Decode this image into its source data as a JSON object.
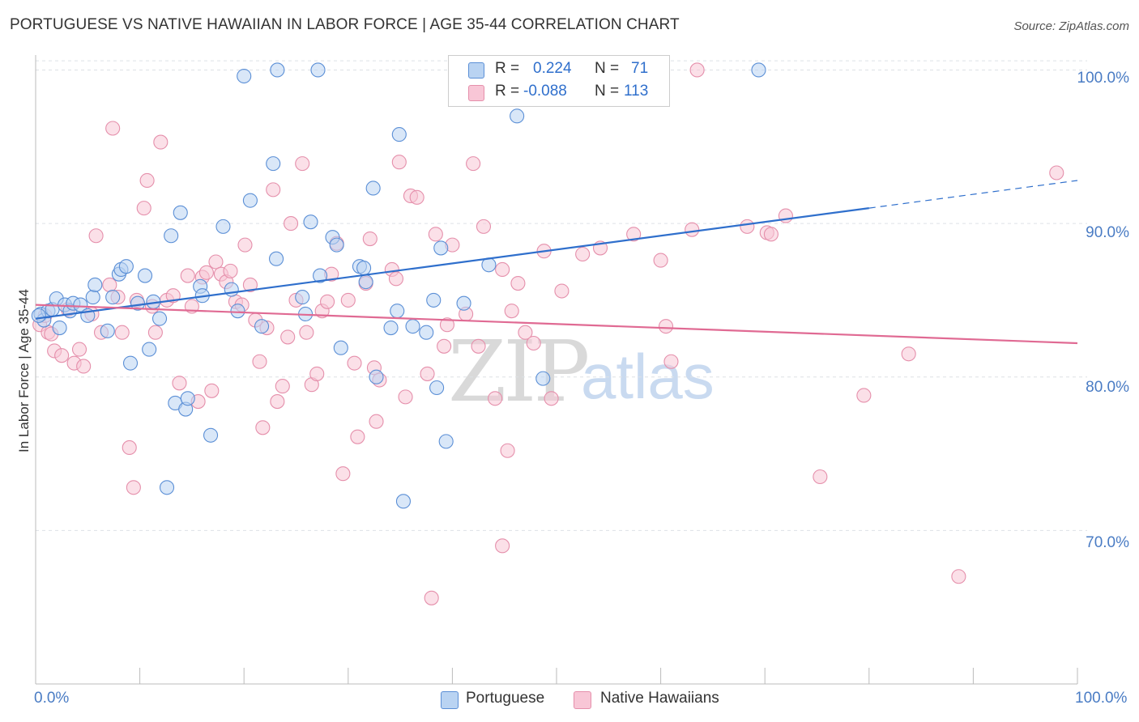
{
  "title": "PORTUGUESE VS NATIVE HAWAIIAN IN LABOR FORCE | AGE 35-44 CORRELATION CHART",
  "source": "Source: ZipAtlas.com",
  "watermark": {
    "zip": "ZIP",
    "atlas": "atlas"
  },
  "legend": {
    "r_label": "R =",
    "n_label": "N =",
    "rows": [
      {
        "name": "Portuguese",
        "r": "0.224",
        "n": "71"
      },
      {
        "name": "Native Hawaiians",
        "r": "-0.088",
        "n": "113"
      }
    ]
  },
  "colors": {
    "portuguese_fill": "#b9d3f2",
    "portuguese_stroke": "#5b8fd6",
    "portuguese_line": "#2f6fcc",
    "hawaiian_fill": "#f8c6d6",
    "hawaiian_stroke": "#e58fab",
    "hawaiian_line": "#e06a93",
    "grid": "#dde1e6",
    "axis_text": "#4a7cc4"
  },
  "chart_data": {
    "type": "scatter",
    "title": "PORTUGUESE VS NATIVE HAWAIIAN IN LABOR FORCE | AGE 35-44 CORRELATION CHART",
    "xlabel": "",
    "ylabel": "In Labor Force | Age 35-44",
    "xlim": [
      0,
      100
    ],
    "ylim": [
      60,
      101.5
    ],
    "x_tick_labels": [
      "0.0%",
      "100.0%"
    ],
    "y_ticks": [
      70,
      80,
      90,
      100
    ],
    "y_tick_labels": [
      "70.0%",
      "80.0%",
      "90.0%",
      "100.0%"
    ],
    "grid": true,
    "legend_position": "top-center",
    "series": [
      {
        "name": "Portuguese",
        "r": 0.224,
        "n": 71,
        "trend": {
          "x0": 0,
          "y0": 83.8,
          "x1": 80,
          "y1": 91.0,
          "dashed_to_x": 100,
          "dashed_to_y": 92.8
        },
        "points": [
          [
            0.5,
            84.1
          ],
          [
            0.8,
            83.7
          ],
          [
            1.2,
            84.3
          ],
          [
            1.6,
            84.4
          ],
          [
            2.0,
            85.1
          ],
          [
            2.3,
            83.2
          ],
          [
            2.8,
            84.7
          ],
          [
            3.3,
            84.3
          ],
          [
            3.6,
            84.8
          ],
          [
            4.3,
            84.7
          ],
          [
            5.0,
            84.0
          ],
          [
            5.5,
            85.2
          ],
          [
            5.7,
            86.0
          ],
          [
            6.9,
            83.0
          ],
          [
            7.4,
            85.2
          ],
          [
            8.0,
            86.7
          ],
          [
            8.2,
            87.0
          ],
          [
            8.7,
            87.2
          ],
          [
            9.1,
            80.9
          ],
          [
            9.8,
            84.8
          ],
          [
            10.5,
            86.6
          ],
          [
            10.9,
            81.8
          ],
          [
            11.3,
            84.9
          ],
          [
            11.9,
            83.8
          ],
          [
            12.6,
            72.8
          ],
          [
            13.0,
            89.2
          ],
          [
            13.4,
            78.3
          ],
          [
            13.9,
            90.7
          ],
          [
            14.4,
            77.9
          ],
          [
            14.6,
            78.6
          ],
          [
            15.8,
            85.9
          ],
          [
            16.0,
            85.3
          ],
          [
            16.8,
            76.2
          ],
          [
            18.0,
            89.8
          ],
          [
            18.8,
            85.7
          ],
          [
            19.4,
            84.3
          ],
          [
            20.0,
            99.6
          ],
          [
            20.6,
            91.5
          ],
          [
            21.7,
            83.3
          ],
          [
            22.8,
            93.9
          ],
          [
            23.1,
            87.7
          ],
          [
            23.2,
            100.0
          ],
          [
            25.6,
            85.2
          ],
          [
            25.9,
            84.1
          ],
          [
            26.4,
            90.1
          ],
          [
            27.1,
            100.0
          ],
          [
            27.3,
            86.6
          ],
          [
            28.5,
            89.1
          ],
          [
            28.9,
            88.6
          ],
          [
            29.3,
            81.9
          ],
          [
            31.1,
            87.2
          ],
          [
            31.5,
            87.1
          ],
          [
            31.7,
            86.2
          ],
          [
            32.4,
            92.3
          ],
          [
            32.7,
            80.0
          ],
          [
            34.1,
            83.2
          ],
          [
            34.7,
            84.3
          ],
          [
            34.9,
            95.8
          ],
          [
            35.3,
            71.9
          ],
          [
            36.2,
            83.3
          ],
          [
            37.5,
            82.9
          ],
          [
            38.2,
            85.0
          ],
          [
            38.5,
            79.3
          ],
          [
            38.9,
            88.4
          ],
          [
            39.4,
            75.8
          ],
          [
            41.1,
            84.8
          ],
          [
            43.5,
            87.3
          ],
          [
            46.2,
            97.0
          ],
          [
            48.7,
            79.9
          ],
          [
            69.4,
            100.0
          ],
          [
            0.3,
            84.0
          ]
        ]
      },
      {
        "name": "Native Hawaiians",
        "r": -0.088,
        "n": 113,
        "trend": {
          "x0": 0,
          "y0": 84.7,
          "x1": 100,
          "y1": 82.2
        },
        "points": [
          [
            0.4,
            83.4
          ],
          [
            0.9,
            84.0
          ],
          [
            1.2,
            82.9
          ],
          [
            1.5,
            82.8
          ],
          [
            1.8,
            81.7
          ],
          [
            2.5,
            81.4
          ],
          [
            3.1,
            84.4
          ],
          [
            3.7,
            80.9
          ],
          [
            4.2,
            81.8
          ],
          [
            4.6,
            80.7
          ],
          [
            5.4,
            84.1
          ],
          [
            5.8,
            89.2
          ],
          [
            6.3,
            82.9
          ],
          [
            7.1,
            86.0
          ],
          [
            7.4,
            96.2
          ],
          [
            7.9,
            85.2
          ],
          [
            8.3,
            82.9
          ],
          [
            9.0,
            75.4
          ],
          [
            9.4,
            72.8
          ],
          [
            9.7,
            85.0
          ],
          [
            10.4,
            91.0
          ],
          [
            10.7,
            92.8
          ],
          [
            11.2,
            84.6
          ],
          [
            11.5,
            82.9
          ],
          [
            12.0,
            95.3
          ],
          [
            12.6,
            85.0
          ],
          [
            13.2,
            85.3
          ],
          [
            13.8,
            79.6
          ],
          [
            14.6,
            86.6
          ],
          [
            15.0,
            84.6
          ],
          [
            15.6,
            78.4
          ],
          [
            16.0,
            86.5
          ],
          [
            16.4,
            86.8
          ],
          [
            16.9,
            79.1
          ],
          [
            17.3,
            87.5
          ],
          [
            17.8,
            86.7
          ],
          [
            18.3,
            86.2
          ],
          [
            18.7,
            86.9
          ],
          [
            19.2,
            84.9
          ],
          [
            19.8,
            84.7
          ],
          [
            20.1,
            88.6
          ],
          [
            20.6,
            86.0
          ],
          [
            21.1,
            83.7
          ],
          [
            21.5,
            81.0
          ],
          [
            21.8,
            76.7
          ],
          [
            22.2,
            83.2
          ],
          [
            22.8,
            92.2
          ],
          [
            23.2,
            78.4
          ],
          [
            23.7,
            79.4
          ],
          [
            24.2,
            82.6
          ],
          [
            24.5,
            90.0
          ],
          [
            25.0,
            85.0
          ],
          [
            25.6,
            93.9
          ],
          [
            26.0,
            82.9
          ],
          [
            26.5,
            79.5
          ],
          [
            27.0,
            80.2
          ],
          [
            27.5,
            84.3
          ],
          [
            28.0,
            84.9
          ],
          [
            28.4,
            86.7
          ],
          [
            28.9,
            88.7
          ],
          [
            29.5,
            73.7
          ],
          [
            30.0,
            85.0
          ],
          [
            30.6,
            80.9
          ],
          [
            30.9,
            76.1
          ],
          [
            31.7,
            86.1
          ],
          [
            32.1,
            89.0
          ],
          [
            32.5,
            80.6
          ],
          [
            32.7,
            77.1
          ],
          [
            33.0,
            79.8
          ],
          [
            34.2,
            87.0
          ],
          [
            34.6,
            86.4
          ],
          [
            34.9,
            94.0
          ],
          [
            35.5,
            78.7
          ],
          [
            36.0,
            91.8
          ],
          [
            36.6,
            91.7
          ],
          [
            37.6,
            80.2
          ],
          [
            38.0,
            65.6
          ],
          [
            38.4,
            89.3
          ],
          [
            39.2,
            82.0
          ],
          [
            39.5,
            83.4
          ],
          [
            40.0,
            88.6
          ],
          [
            41.3,
            84.1
          ],
          [
            42.0,
            93.9
          ],
          [
            42.5,
            82.0
          ],
          [
            43.0,
            89.8
          ],
          [
            44.1,
            78.6
          ],
          [
            44.8,
            87.0
          ],
          [
            45.3,
            75.2
          ],
          [
            45.7,
            84.3
          ],
          [
            46.3,
            86.1
          ],
          [
            47.0,
            82.9
          ],
          [
            47.8,
            82.2
          ],
          [
            48.8,
            88.2
          ],
          [
            49.5,
            78.6
          ],
          [
            50.5,
            85.6
          ],
          [
            52.5,
            88.0
          ],
          [
            54.2,
            88.4
          ],
          [
            57.4,
            89.3
          ],
          [
            60.0,
            87.6
          ],
          [
            60.5,
            83.3
          ],
          [
            61.0,
            81.0
          ],
          [
            63.5,
            100.0
          ],
          [
            68.3,
            89.8
          ],
          [
            70.2,
            89.4
          ],
          [
            70.6,
            89.3
          ],
          [
            72.0,
            90.5
          ],
          [
            75.3,
            73.5
          ],
          [
            79.5,
            78.8
          ],
          [
            83.8,
            81.5
          ],
          [
            88.6,
            67.0
          ],
          [
            98.0,
            93.3
          ],
          [
            44.8,
            69.0
          ],
          [
            63.0,
            89.6
          ]
        ]
      }
    ]
  }
}
